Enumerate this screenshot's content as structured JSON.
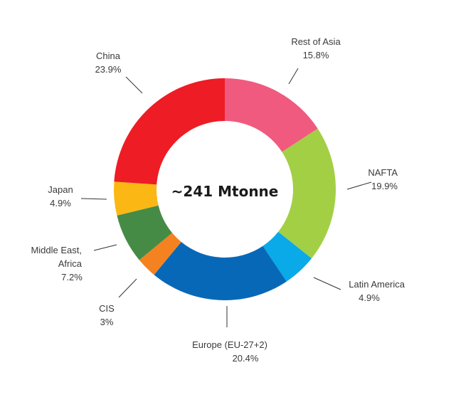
{
  "chart_data": {
    "type": "pie",
    "style": "donut",
    "center_label": "~241 Mtonne",
    "slices": [
      {
        "name": "Rest of Asia",
        "value": 15.8,
        "value_label": "15.8%",
        "color": "#f05a7e"
      },
      {
        "name": "NAFTA",
        "value": 19.9,
        "value_label": "19.9%",
        "color": "#a3cf45"
      },
      {
        "name": "Latin America",
        "value": 4.9,
        "value_label": "4.9%",
        "color": "#0aa9e8"
      },
      {
        "name": "Europe (EU-27+2)",
        "value": 20.4,
        "value_label": "20.4%",
        "color": "#0868b8"
      },
      {
        "name": "CIS",
        "value": 3,
        "value_label": "3%",
        "color": "#f58220"
      },
      {
        "name": "Middle East, Africa",
        "value": 7.2,
        "value_label": "7.2%",
        "color": "#468b45"
      },
      {
        "name": "Japan",
        "value": 4.9,
        "value_label": "4.9%",
        "color": "#fbb713"
      },
      {
        "name": "China",
        "value": 23.9,
        "value_label": "23.9%",
        "color": "#ee1c25"
      }
    ]
  }
}
